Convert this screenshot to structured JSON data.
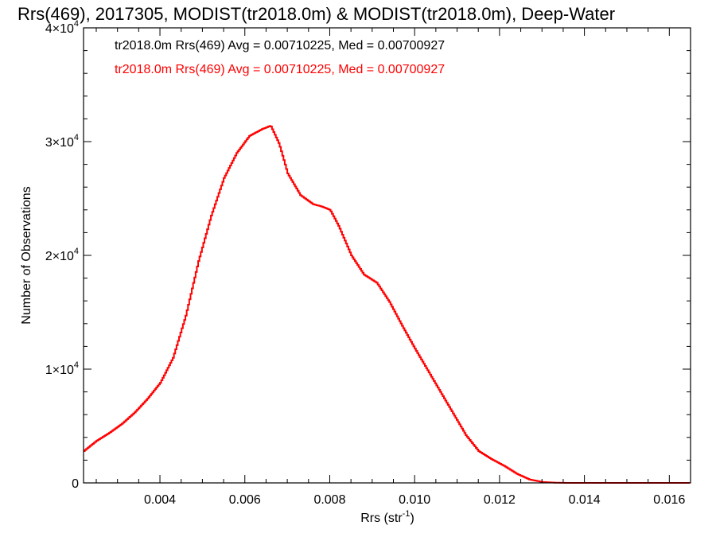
{
  "chart_data": {
    "type": "step",
    "title": "Rrs(469), 2017305, MODIST(tr2018.0m) & MODIST(tr2018.0m), Deep-Water",
    "xlabel": "Rrs (str",
    "xlabel_sup": "-1",
    "xlabel_end": ")",
    "ylabel": "Number of Observations",
    "xlim": [
      0.0022,
      0.0165
    ],
    "ylim": [
      0,
      40000
    ],
    "x_ticks": [
      {
        "value": 0.004,
        "label": "0.004"
      },
      {
        "value": 0.006,
        "label": "0.006"
      },
      {
        "value": 0.008,
        "label": "0.008"
      },
      {
        "value": 0.01,
        "label": "0.010"
      },
      {
        "value": 0.012,
        "label": "0.012"
      },
      {
        "value": 0.014,
        "label": "0.014"
      },
      {
        "value": 0.016,
        "label": "0.016"
      }
    ],
    "y_ticks": [
      {
        "value": 0,
        "label": "0",
        "exp": ""
      },
      {
        "value": 10000,
        "label": "1×10",
        "exp": "4"
      },
      {
        "value": 20000,
        "label": "2×10",
        "exp": "4"
      },
      {
        "value": 30000,
        "label": "3×10",
        "exp": "4"
      },
      {
        "value": 40000,
        "label": "4×10",
        "exp": "4"
      }
    ],
    "legend": [
      {
        "text": "tr2018.0m Rrs(469) Avg = 0.00710225, Med = 0.00700927",
        "color": "#000000"
      },
      {
        "text": "tr2018.0m Rrs(469) Avg = 0.00710225, Med = 0.00700927",
        "color": "#ff0000"
      }
    ],
    "series": [
      {
        "color": "#ff0000",
        "x": [
          0.0022,
          0.0025,
          0.0028,
          0.0031,
          0.0034,
          0.0037,
          0.004,
          0.0043,
          0.0046,
          0.0049,
          0.0052,
          0.0055,
          0.0058,
          0.0061,
          0.0064,
          0.0066,
          0.0068,
          0.007,
          0.0073,
          0.0076,
          0.0078,
          0.008,
          0.0082,
          0.0085,
          0.0088,
          0.0091,
          0.0094,
          0.0097,
          0.01,
          0.0103,
          0.0106,
          0.0109,
          0.0112,
          0.0115,
          0.0118,
          0.0121,
          0.0124,
          0.0127,
          0.013,
          0.0133,
          0.0136,
          0.014,
          0.0145,
          0.015,
          0.0155,
          0.016,
          0.0165
        ],
        "y": [
          2800,
          3700,
          4400,
          5200,
          6200,
          7400,
          8800,
          11000,
          14700,
          19500,
          23500,
          26800,
          29000,
          30500,
          31100,
          31400,
          29800,
          27200,
          25300,
          24500,
          24300,
          24000,
          22600,
          20000,
          18300,
          17600,
          15900,
          13800,
          11800,
          9900,
          8000,
          6100,
          4200,
          2800,
          2100,
          1500,
          800,
          300,
          80,
          20,
          0,
          0,
          0,
          0,
          0,
          0,
          0
        ]
      }
    ]
  }
}
